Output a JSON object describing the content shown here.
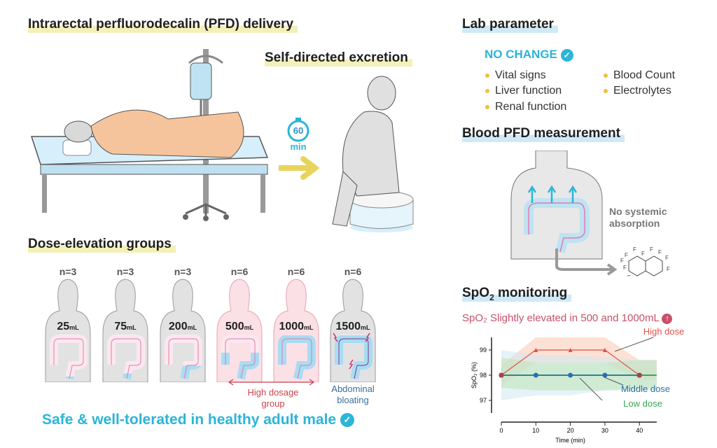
{
  "delivery": {
    "title": "Intrarectal perfluorodecalin (PFD) delivery"
  },
  "excretion": {
    "title": "Self-directed excretion",
    "timer_value": "60",
    "timer_unit": "min"
  },
  "lab": {
    "title": "Lab parameter",
    "status": "NO CHANGE",
    "items_left": [
      "Vital signs",
      "Liver function",
      "Renal function"
    ],
    "items_right": [
      "Blood Count",
      "Electrolytes"
    ]
  },
  "blood": {
    "title": "Blood PFD measurement",
    "note": "No systemic absorption",
    "molecule_atom": "F"
  },
  "dose": {
    "title": "Dose-elevation groups",
    "groups": [
      {
        "n": "n=3",
        "value": "25",
        "unit": "mL",
        "fill": 0.05,
        "highlight": false
      },
      {
        "n": "n=3",
        "value": "75",
        "unit": "mL",
        "fill": 0.12,
        "highlight": false
      },
      {
        "n": "n=3",
        "value": "200",
        "unit": "mL",
        "fill": 0.3,
        "highlight": false
      },
      {
        "n": "n=6",
        "value": "500",
        "unit": "mL",
        "fill": 0.6,
        "highlight": true
      },
      {
        "n": "n=6",
        "value": "1000",
        "unit": "mL",
        "fill": 1.0,
        "highlight": true
      },
      {
        "n": "n=6",
        "value": "1500",
        "unit": "mL",
        "fill": 1.0,
        "highlight": false
      }
    ],
    "high_dosage_label": "High dosage group",
    "bloating_label": "Abdominal bloating"
  },
  "footer": {
    "text": "Safe & well-tolerated in healthy adult male"
  },
  "spo2": {
    "title_main": "SpO",
    "title_sub": "2",
    "title_rest": " monitoring",
    "note": "SpO₂ Slightly elevated in 500 and 1000mL"
  },
  "chart_data": {
    "type": "line",
    "xlabel": "Time (min)",
    "ylabel": "SpO₂ (%)",
    "x": [
      0,
      10,
      20,
      30,
      40
    ],
    "xlim": [
      0,
      45
    ],
    "ylim": [
      96.5,
      99.5
    ],
    "xticks": [
      0,
      10,
      20,
      30,
      40
    ],
    "yticks": [
      97,
      98,
      99
    ],
    "grid": false,
    "series": [
      {
        "name": "High dose",
        "values": [
          98,
          99,
          99,
          99,
          98
        ],
        "color": "#e0504a",
        "marker": "triangle",
        "band": [
          [
            97.6,
            98.4
          ],
          [
            98.5,
            99.5
          ],
          [
            98.5,
            99.5
          ],
          [
            98.5,
            99.5
          ],
          [
            97.8,
            98.6
          ]
        ]
      },
      {
        "name": "Middle dose",
        "values": [
          98,
          98,
          98,
          98,
          98
        ],
        "color": "#2a6fb0",
        "marker": "circle",
        "band": [
          [
            97,
            99
          ],
          [
            97.2,
            98.8
          ],
          [
            97.2,
            98.8
          ],
          [
            97.4,
            98.7
          ],
          [
            97.5,
            98.6
          ]
        ]
      },
      {
        "name": "Low dose",
        "values": [
          98,
          98,
          98,
          98,
          98
        ],
        "color": "#3aa655",
        "marker": "none",
        "band": [
          [
            97.5,
            98.7
          ],
          [
            97.4,
            98.5
          ],
          [
            97.4,
            98.5
          ],
          [
            97.4,
            98.5
          ],
          [
            97.4,
            98.6
          ]
        ]
      }
    ]
  },
  "colors": {
    "accent": "#2bb5d8",
    "warning": "#d0506e",
    "highlight_yellow": "#f3f0b8",
    "highlight_blue": "#cfeaf6"
  }
}
